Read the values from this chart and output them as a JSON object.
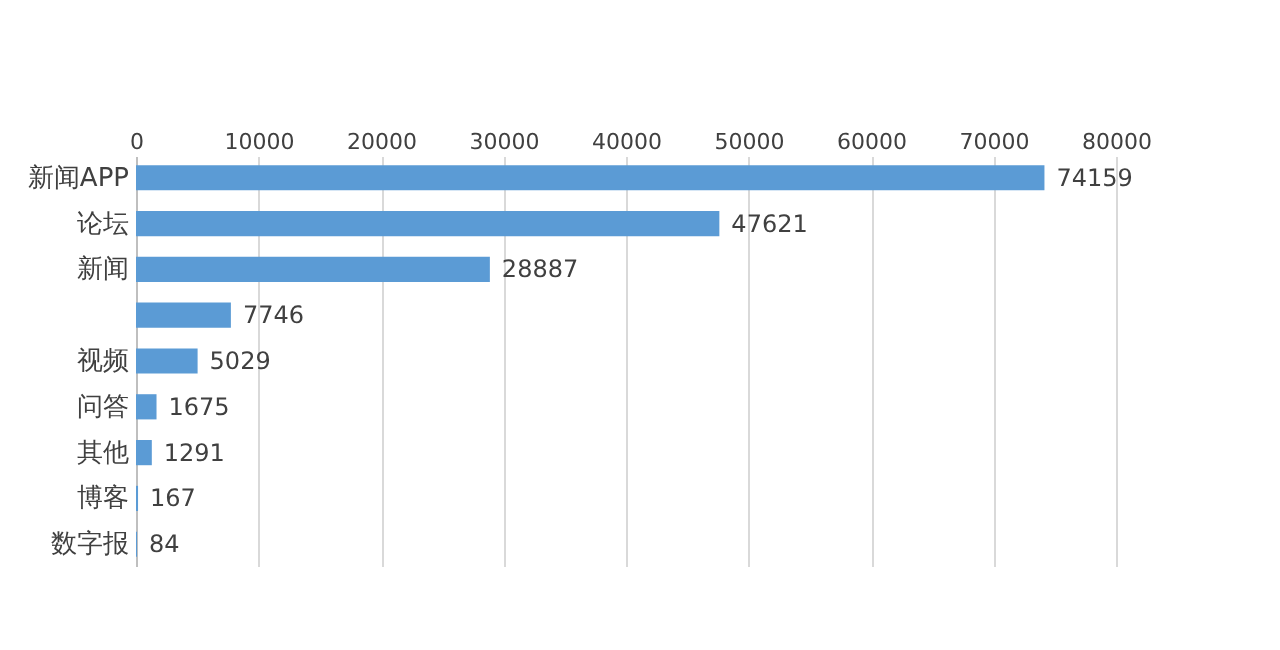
{
  "chart_data": {
    "type": "bar",
    "orientation": "horizontal",
    "categories": [
      "新闻APP",
      "论坛",
      "新闻",
      null,
      "视频",
      "问答",
      "其他",
      "博客",
      "数字报"
    ],
    "values": [
      74159,
      47621,
      28887,
      7746,
      5029,
      1675,
      1291,
      167,
      84
    ],
    "color": "#5b9bd5",
    "xlim": [
      0,
      80000
    ],
    "xticks": [
      0,
      10000,
      20000,
      30000,
      40000,
      50000,
      60000,
      70000,
      80000
    ],
    "grid": "x",
    "data_labels": true
  }
}
